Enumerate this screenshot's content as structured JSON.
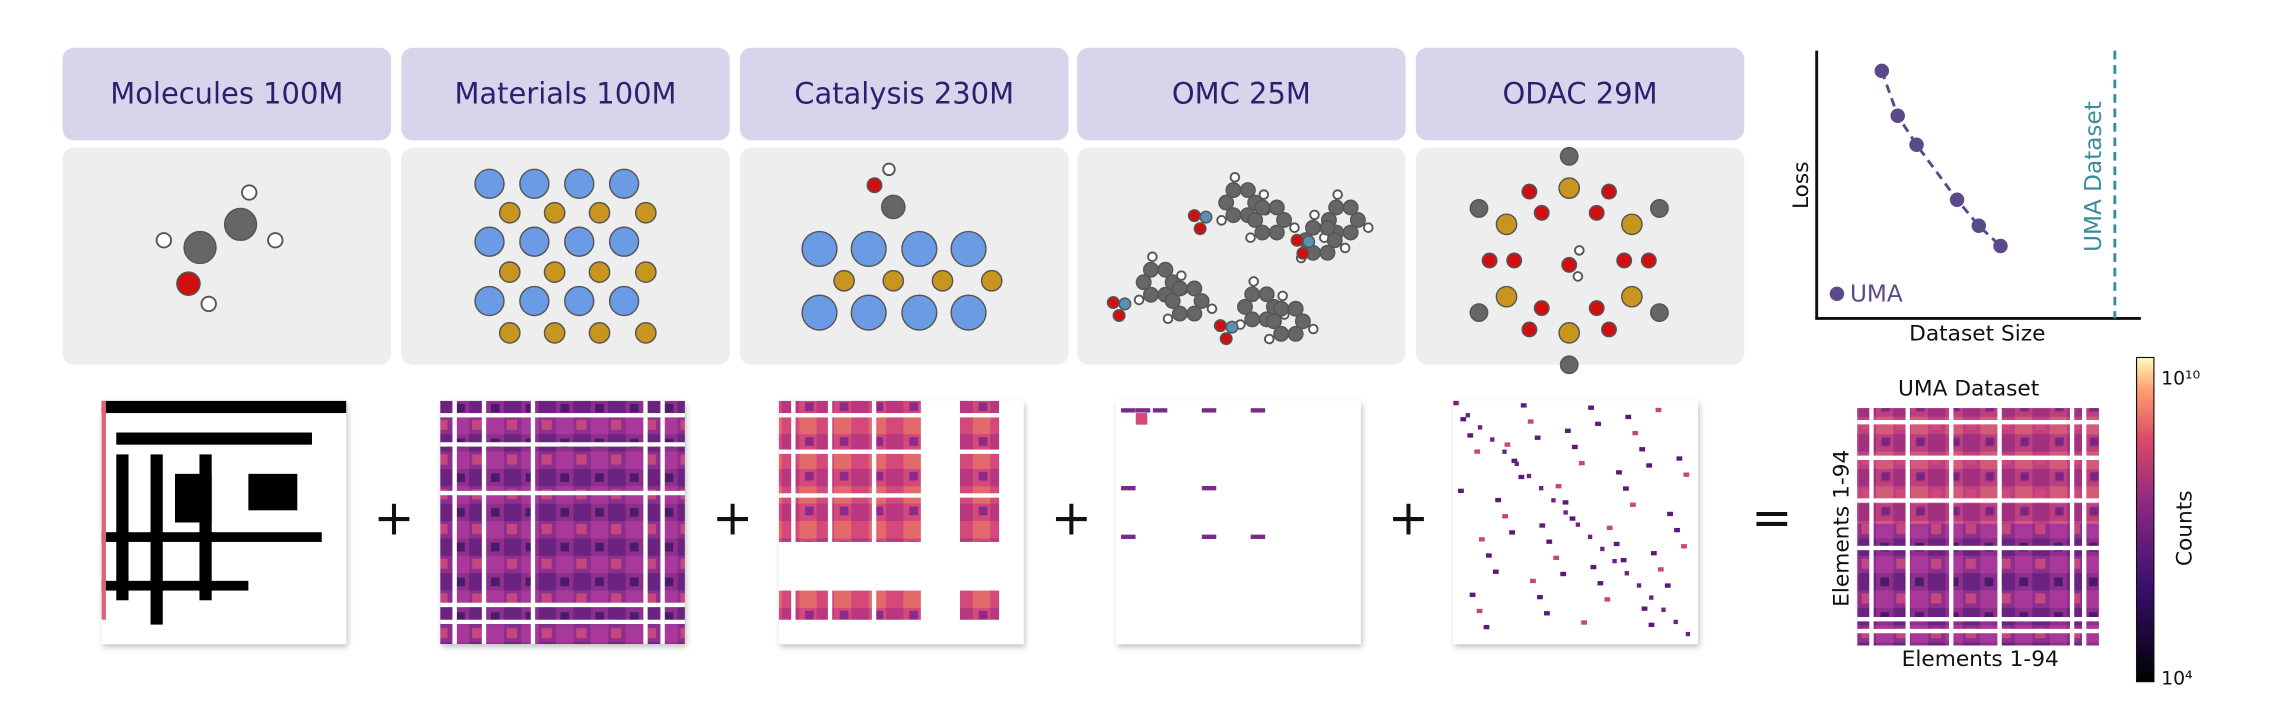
{
  "panels": [
    {
      "label": "Molecules 100M"
    },
    {
      "label": "Materials 100M"
    },
    {
      "label": "Catalysis 230M"
    },
    {
      "label": "OMC 25M"
    },
    {
      "label": "ODAC 29M"
    }
  ],
  "operators": [
    "+",
    "+",
    "+",
    "+",
    "="
  ],
  "scaling_plot": {
    "y_label": "Loss",
    "x_label": "Dataset Size",
    "reference_line_label": "UMA Dataset",
    "legend": "UMA"
  },
  "combined_heatmap": {
    "title": "UMA Dataset",
    "x_label": "Elements 1-94",
    "y_label": "Elements 1-94",
    "colorbar_label": "Counts",
    "colorbar_ticks": [
      "10¹⁰",
      "10⁴"
    ]
  }
}
